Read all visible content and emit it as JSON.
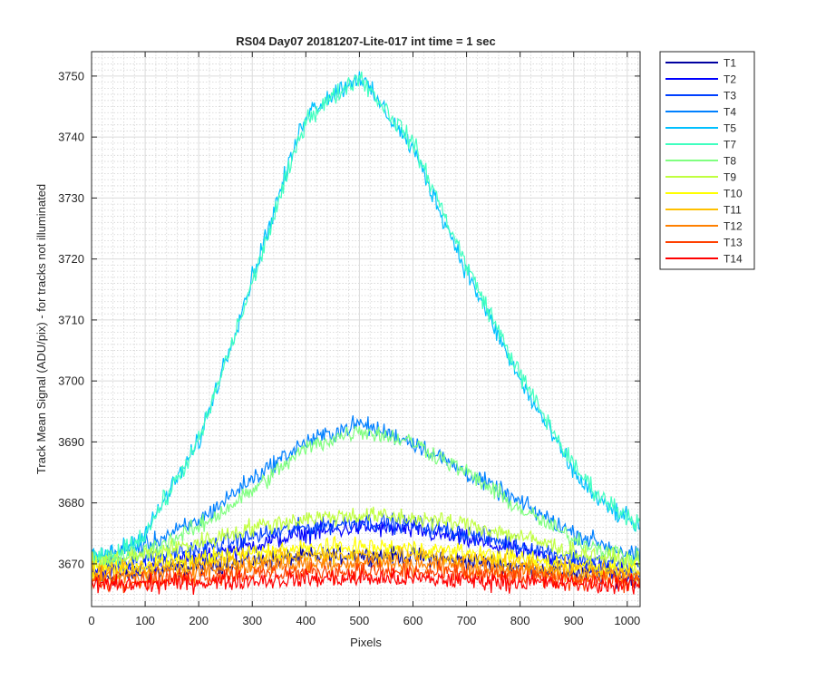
{
  "chart_data": {
    "type": "line",
    "title": "RS04 Day07 20181207-Lite-017 int time = 1 sec",
    "xlabel": "Pixels",
    "ylabel": "Track Mean Signal (ADU/pix) - for tracks not illuminated",
    "xlim": [
      0,
      1024
    ],
    "ylim": [
      3663,
      3754
    ],
    "xticks": [
      0,
      100,
      200,
      300,
      400,
      500,
      600,
      700,
      800,
      900,
      1000
    ],
    "yticks": [
      3670,
      3680,
      3690,
      3700,
      3710,
      3720,
      3730,
      3740,
      3750
    ],
    "grid": "major and minor",
    "legend_position": "outside right",
    "series": [
      {
        "name": "T1",
        "color": "#0000a0",
        "x": [
          0,
          100,
          200,
          300,
          400,
          500,
          600,
          700,
          800,
          900,
          1024
        ],
        "y": [
          3667.5,
          3668.5,
          3669.5,
          3670.5,
          3671.2,
          3671.5,
          3671.2,
          3670.5,
          3669.5,
          3668.5,
          3667.5
        ]
      },
      {
        "name": "T2",
        "color": "#0000ff",
        "x": [
          0,
          100,
          200,
          300,
          400,
          500,
          600,
          700,
          800,
          900,
          1024
        ],
        "y": [
          3669,
          3669.5,
          3671,
          3673,
          3675,
          3676,
          3675.5,
          3674,
          3672,
          3670,
          3668.5
        ]
      },
      {
        "name": "T3",
        "color": "#0040ff",
        "x": [
          0,
          100,
          200,
          300,
          400,
          500,
          600,
          700,
          800,
          900,
          1024
        ],
        "y": [
          3670,
          3671,
          3672.5,
          3674.5,
          3676,
          3677,
          3676.5,
          3675,
          3673,
          3671,
          3669.5
        ]
      },
      {
        "name": "T4",
        "color": "#0080ff",
        "x": [
          0,
          100,
          200,
          300,
          400,
          500,
          600,
          700,
          800,
          900,
          1024
        ],
        "y": [
          3671,
          3673,
          3677,
          3684,
          3690,
          3693,
          3690,
          3685,
          3680,
          3675,
          3671
        ]
      },
      {
        "name": "T5",
        "color": "#00c0ff",
        "x": [
          0,
          50,
          100,
          200,
          300,
          400,
          500,
          600,
          700,
          800,
          900,
          950,
          1024
        ],
        "y": [
          3671,
          3672,
          3675,
          3690,
          3717,
          3744,
          3750,
          3738,
          3718,
          3700,
          3685,
          3680,
          3676
        ]
      },
      {
        "name": "T7",
        "color": "#40ffc0",
        "x": [
          0,
          50,
          100,
          200,
          300,
          400,
          500,
          600,
          700,
          800,
          900,
          950,
          1024
        ],
        "y": [
          3670.5,
          3671.5,
          3675,
          3690,
          3716,
          3743,
          3750,
          3739,
          3719,
          3701,
          3686,
          3681,
          3676.5
        ]
      },
      {
        "name": "T8",
        "color": "#80ff80",
        "x": [
          0,
          100,
          200,
          300,
          400,
          500,
          600,
          700,
          800,
          900,
          1024
        ],
        "y": [
          3670,
          3672,
          3676,
          3682,
          3689,
          3692,
          3690,
          3685,
          3679,
          3674,
          3670.5
        ]
      },
      {
        "name": "T9",
        "color": "#c0ff40",
        "x": [
          0,
          100,
          200,
          300,
          400,
          500,
          600,
          700,
          800,
          900,
          1024
        ],
        "y": [
          3670,
          3671.5,
          3673.5,
          3676,
          3677.5,
          3678,
          3677.5,
          3676.5,
          3674.5,
          3672,
          3670
        ]
      },
      {
        "name": "T10",
        "color": "#ffff00",
        "x": [
          0,
          100,
          200,
          300,
          400,
          500,
          600,
          700,
          800,
          900,
          1024
        ],
        "y": [
          3669,
          3669.8,
          3670.8,
          3671.8,
          3672.5,
          3672.8,
          3672.5,
          3671.8,
          3670.8,
          3669.8,
          3669
        ]
      },
      {
        "name": "T11",
        "color": "#ffc000",
        "x": [
          0,
          100,
          200,
          300,
          400,
          500,
          600,
          700,
          800,
          900,
          1024
        ],
        "y": [
          3668.5,
          3669,
          3670,
          3670.8,
          3671.3,
          3671.5,
          3671.3,
          3670.8,
          3670,
          3669,
          3668.5
        ]
      },
      {
        "name": "T12",
        "color": "#ff8000",
        "x": [
          0,
          100,
          200,
          300,
          400,
          500,
          600,
          700,
          800,
          900,
          1024
        ],
        "y": [
          3667.5,
          3668,
          3668.8,
          3669.5,
          3670,
          3670.2,
          3670,
          3669.5,
          3668.8,
          3668,
          3667.5
        ]
      },
      {
        "name": "T13",
        "color": "#ff4000",
        "x": [
          0,
          100,
          200,
          300,
          400,
          500,
          600,
          700,
          800,
          900,
          1024
        ],
        "y": [
          3667,
          3667.3,
          3667.8,
          3668.3,
          3668.6,
          3668.8,
          3668.6,
          3668.3,
          3667.8,
          3667.3,
          3667
        ]
      },
      {
        "name": "T14",
        "color": "#ff0000",
        "x": [
          0,
          100,
          200,
          300,
          400,
          500,
          600,
          700,
          800,
          900,
          1024
        ],
        "y": [
          3666.5,
          3666.7,
          3667,
          3667.3,
          3667.5,
          3667.6,
          3667.5,
          3667.3,
          3667,
          3666.7,
          3666.5
        ]
      }
    ]
  }
}
